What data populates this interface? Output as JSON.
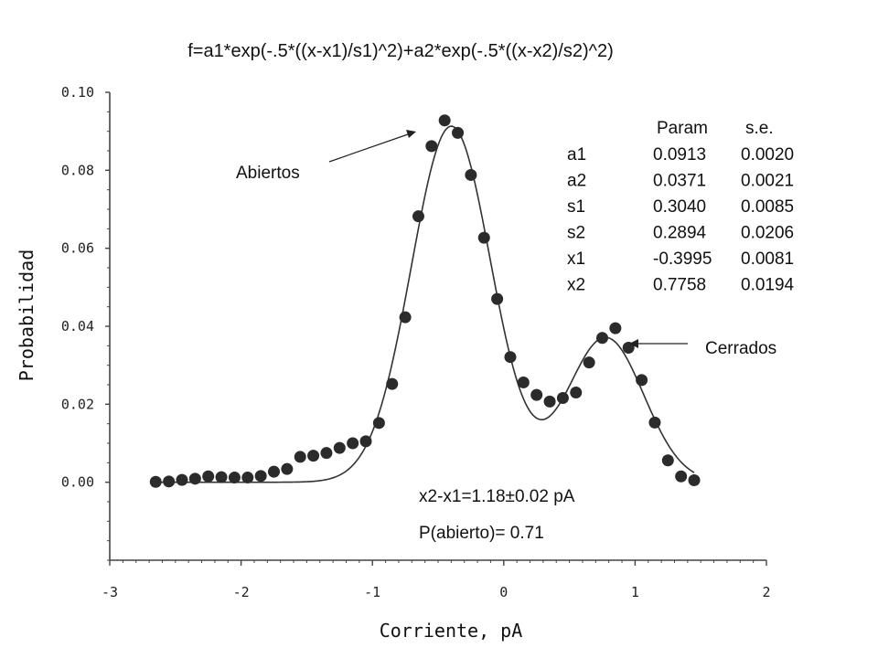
{
  "chart_data": {
    "type": "scatter",
    "title": "f=a1*exp(-.5*((x-x1)/s1)^2)+a2*exp(-.5*((x-x2)/s2)^2)",
    "xlabel": "Corriente, pA",
    "ylabel": "Probabilidad",
    "xlim": [
      -3,
      2
    ],
    "ylim": [
      -0.02,
      0.1
    ],
    "x_ticks": [
      "-3",
      "-2",
      "-1",
      "0",
      "1",
      "2"
    ],
    "y_ticks": [
      "0.10",
      "0.08",
      "0.06",
      "0.04",
      "0.02",
      "0.00"
    ],
    "y_tick_values": [
      0.1,
      0.08,
      0.06,
      0.04,
      0.02,
      0.0
    ],
    "x_tick_values": [
      -3,
      -2,
      -1,
      0,
      1,
      2
    ],
    "grid": false,
    "series": [
      {
        "type": "scatter",
        "x": [
          -2.65,
          -2.55,
          -2.45,
          -2.35,
          -2.25,
          -2.15,
          -2.05,
          -1.95,
          -1.85,
          -1.75,
          -1.65,
          -1.55,
          -1.45,
          -1.35,
          -1.25,
          -1.15,
          -1.05,
          -0.95,
          -0.85,
          -0.75,
          -0.65,
          -0.55,
          -0.45,
          -0.35,
          -0.25,
          -0.15,
          -0.05,
          0.05,
          0.15,
          0.25,
          0.35,
          0.45,
          0.55,
          0.65,
          0.75,
          0.85,
          0.95,
          1.05,
          1.15,
          1.25,
          1.35,
          1.45
        ],
        "y": [
          0.0001,
          0.0002,
          0.0006,
          0.0009,
          0.0015,
          0.0013,
          0.0012,
          0.0012,
          0.0016,
          0.0027,
          0.0034,
          0.0065,
          0.0068,
          0.0075,
          0.0088,
          0.01,
          0.0105,
          0.0152,
          0.0252,
          0.0423,
          0.0682,
          0.0862,
          0.0928,
          0.0896,
          0.0788,
          0.0627,
          0.047,
          0.0321,
          0.0256,
          0.0224,
          0.0207,
          0.0216,
          0.023,
          0.0307,
          0.037,
          0.0395,
          0.0345,
          0.0262,
          0.0153,
          0.0056,
          0.0015,
          0.0005
        ]
      },
      {
        "type": "line",
        "model": "gaussian-sum",
        "x_range": [
          -2.65,
          1.45
        ],
        "params": {
          "a1": 0.0913,
          "a2": 0.0371,
          "s1": 0.304,
          "s2": 0.2894,
          "x1": -0.3995,
          "x2": 0.7758
        }
      }
    ],
    "params_table": {
      "headers": [
        "Param",
        "s.e."
      ],
      "rows": [
        [
          "a1",
          "0.0913",
          "0.0020"
        ],
        [
          "a2",
          "0.0371",
          "0.0021"
        ],
        [
          "s1",
          "0.3040",
          "0.0085"
        ],
        [
          "s2",
          "0.2894",
          "0.0206"
        ],
        [
          "x1",
          "-0.3995",
          "0.0081"
        ],
        [
          "x2",
          "0.7758",
          "0.0194"
        ]
      ]
    },
    "annotations": {
      "abiertos": "Abiertos",
      "cerrados": "Cerrados",
      "diff": "x2-x1=1.18±0.02 pA",
      "p_abierto": "P(abierto)= 0.71"
    }
  }
}
